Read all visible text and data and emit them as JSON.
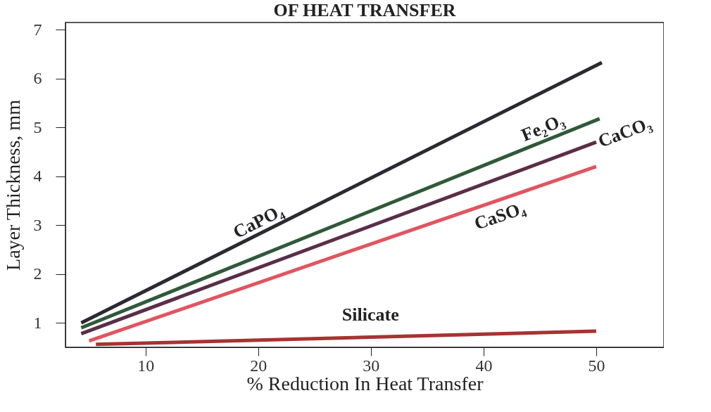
{
  "chart_data": {
    "type": "line",
    "title": "OF HEAT TRANSFER",
    "xlabel": "% Reduction In Heat Transfer",
    "ylabel": "Layer Thickness, mm",
    "xlim": [
      2.9,
      56
    ],
    "xticks": [
      10,
      20,
      30,
      40,
      50
    ],
    "ylim": [
      0.5,
      7.15
    ],
    "yticks": [
      1,
      2,
      3,
      4,
      5,
      6,
      7
    ],
    "grid": false,
    "marker": "none",
    "line_style": "solid",
    "series": [
      {
        "name": "CaPO₄",
        "color": "#2b2a33",
        "x": [
          4.3,
          50.5
        ],
        "values": [
          1.0,
          6.33
        ]
      },
      {
        "name": "Fe₂O₃",
        "color": "#2f5a3a",
        "x": [
          4.3,
          50.3
        ],
        "values": [
          0.9,
          5.18
        ]
      },
      {
        "name": "CaCO₃",
        "color": "#5a2e48",
        "x": [
          4.3,
          50
        ],
        "values": [
          0.78,
          4.7
        ]
      },
      {
        "name": "CaSO₄",
        "color": "#e05561",
        "x": [
          5.0,
          50
        ],
        "values": [
          0.63,
          4.2
        ]
      },
      {
        "name": "Silicate",
        "color": "#a83232",
        "x": [
          5.6,
          50
        ],
        "values": [
          0.56,
          0.83
        ]
      }
    ]
  }
}
